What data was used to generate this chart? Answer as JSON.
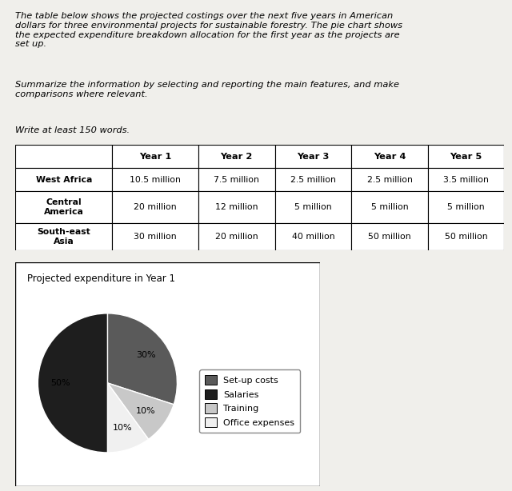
{
  "title_text": "The table below shows the projected costings over the next five years in American\ndollars for three environmental projects for sustainable forestry. The pie chart shows\nthe expected expenditure breakdown allocation for the first year as the projects are\nset up.",
  "subtitle_text": "Summarize the information by selecting and reporting the main features, and make\ncomparisons where relevant.",
  "instruction_text": "Write at least 150 words.",
  "table_headers": [
    "",
    "Year 1",
    "Year 2",
    "Year 3",
    "Year 4",
    "Year 5"
  ],
  "table_rows": [
    [
      "West Africa",
      "10.5 million",
      "7.5 million",
      "2.5 million",
      "2.5 million",
      "3.5 million"
    ],
    [
      "Central\nAmerica",
      "20 million",
      "12 million",
      "5 million",
      "5 million",
      "5 million"
    ],
    [
      "South-east\nAsia",
      "30 million",
      "20 million",
      "40 million",
      "50 million",
      "50 million"
    ]
  ],
  "pie_title": "Projected expenditure in Year 1",
  "pie_values": [
    30,
    10,
    10,
    50
  ],
  "pie_labels": [
    "30%",
    "10%",
    "10%",
    "50%"
  ],
  "pie_colors": [
    "#5a5a5a",
    "#c8c8c8",
    "#f0f0f0",
    "#1e1e1e"
  ],
  "pie_legend_labels": [
    "Set-up costs",
    "Salaries",
    "Training",
    "Office expenses"
  ],
  "pie_legend_colors": [
    "#5a5a5a",
    "#1e1e1e",
    "#c8c8c8",
    "#f0f0f0"
  ],
  "background_color": "#f0efeb"
}
